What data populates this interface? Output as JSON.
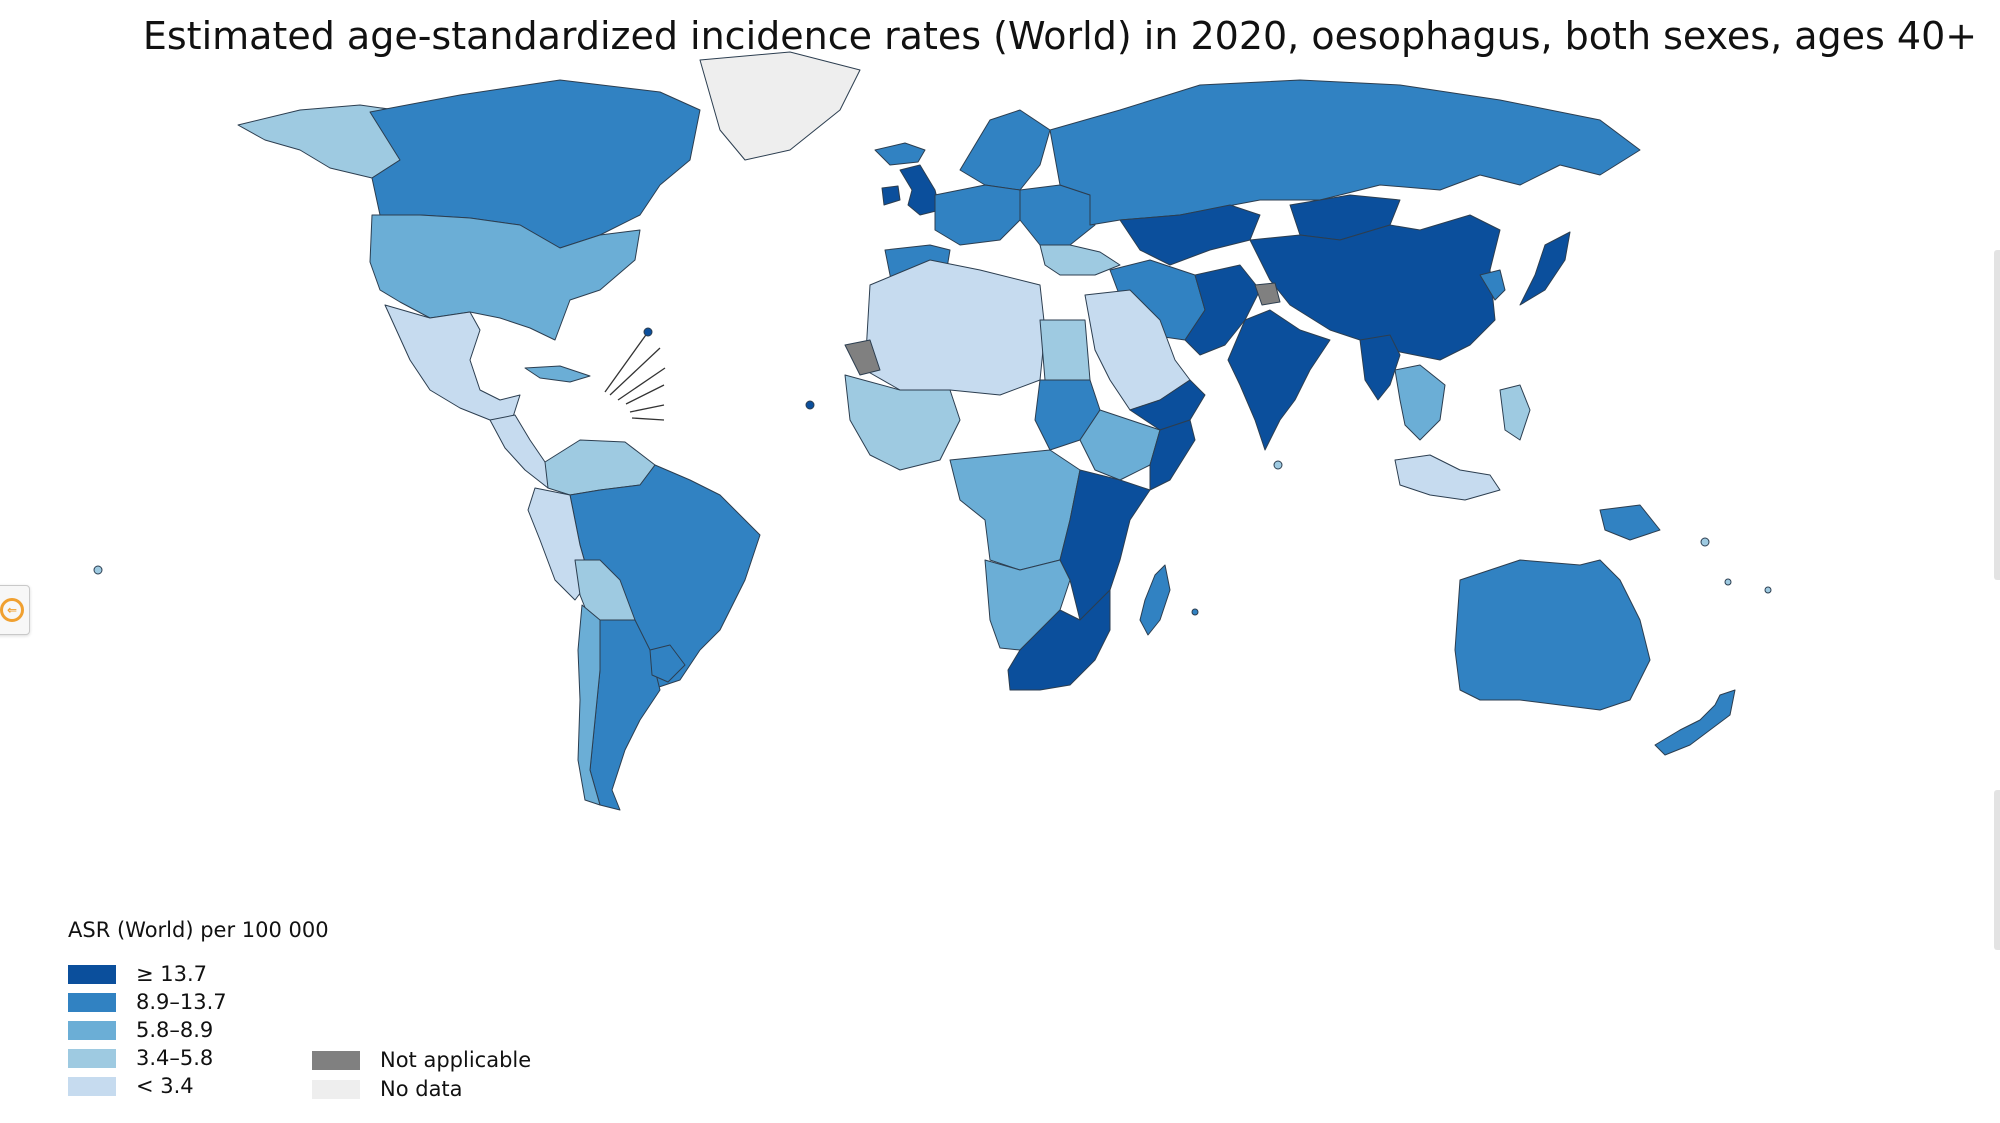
{
  "title": "Estimated age-standardized incidence rates (World) in 2020, oesophagus, both sexes, ages 40+",
  "legend": {
    "title": "ASR (World) per 100 000",
    "classes": [
      {
        "label": "≥ 13.7",
        "color": "#0b4f9c"
      },
      {
        "label": "8.9–13.7",
        "color": "#3182c2"
      },
      {
        "label": "5.8–8.9",
        "color": "#6baed6"
      },
      {
        "label": "3.4–5.8",
        "color": "#9ecae1"
      },
      {
        "label": "< 3.4",
        "color": "#c6dbef"
      }
    ],
    "special": [
      {
        "label": "Not applicable",
        "color": "#808080"
      },
      {
        "label": "No data",
        "color": "#eeeeee"
      }
    ]
  },
  "regions": [
    {
      "name": "Alaska",
      "class": 3
    },
    {
      "name": "Canada",
      "class": 1
    },
    {
      "name": "Greenland",
      "class": 6
    },
    {
      "name": "United States",
      "class": 2
    },
    {
      "name": "Mexico",
      "class": 4
    },
    {
      "name": "Central America",
      "class": 4
    },
    {
      "name": "Cuba",
      "class": 2
    },
    {
      "name": "Colombia / Venezuela",
      "class": 3
    },
    {
      "name": "Brazil",
      "class": 1
    },
    {
      "name": "Peru",
      "class": 4
    },
    {
      "name": "Bolivia",
      "class": 3
    },
    {
      "name": "Argentina",
      "class": 1
    },
    {
      "name": "Chile",
      "class": 2
    },
    {
      "name": "Uruguay",
      "class": 1
    },
    {
      "name": "Iceland",
      "class": 1
    },
    {
      "name": "United Kingdom",
      "class": 0
    },
    {
      "name": "Ireland",
      "class": 0
    },
    {
      "name": "Scandinavia",
      "class": 1
    },
    {
      "name": "Western Europe",
      "class": 1
    },
    {
      "name": "Iberia",
      "class": 1
    },
    {
      "name": "Eastern Europe",
      "class": 1
    },
    {
      "name": "Russia",
      "class": 1
    },
    {
      "name": "Kazakhstan / Central Asia",
      "class": 0
    },
    {
      "name": "Mongolia",
      "class": 0
    },
    {
      "name": "China",
      "class": 0
    },
    {
      "name": "Japan",
      "class": 0
    },
    {
      "name": "Korea",
      "class": 1
    },
    {
      "name": "Turkey",
      "class": 3
    },
    {
      "name": "Iran",
      "class": 1
    },
    {
      "name": "Afghanistan / Pakistan",
      "class": 0
    },
    {
      "name": "India",
      "class": 0
    },
    {
      "name": "Kashmir",
      "class": 5
    },
    {
      "name": "Myanmar",
      "class": 0
    },
    {
      "name": "Southeast Asia",
      "class": 2
    },
    {
      "name": "Saudi Arabia",
      "class": 4
    },
    {
      "name": "Yemen / Oman",
      "class": 0
    },
    {
      "name": "North Africa",
      "class": 4
    },
    {
      "name": "Western Sahara",
      "class": 5
    },
    {
      "name": "Egypt",
      "class": 3
    },
    {
      "name": "West Africa",
      "class": 3
    },
    {
      "name": "Sudan",
      "class": 1
    },
    {
      "name": "Ethiopia",
      "class": 2
    },
    {
      "name": "Somalia",
      "class": 0
    },
    {
      "name": "Central Africa",
      "class": 2
    },
    {
      "name": "East Africa",
      "class": 0
    },
    {
      "name": "Angola / Namibia",
      "class": 2
    },
    {
      "name": "Southern Africa",
      "class": 0
    },
    {
      "name": "Madagascar",
      "class": 1
    },
    {
      "name": "Indonesia",
      "class": 4
    },
    {
      "name": "Papua New Guinea",
      "class": 1
    },
    {
      "name": "Australia",
      "class": 1
    },
    {
      "name": "New Zealand",
      "class": 1
    },
    {
      "name": "Philippines",
      "class": 3
    }
  ]
}
